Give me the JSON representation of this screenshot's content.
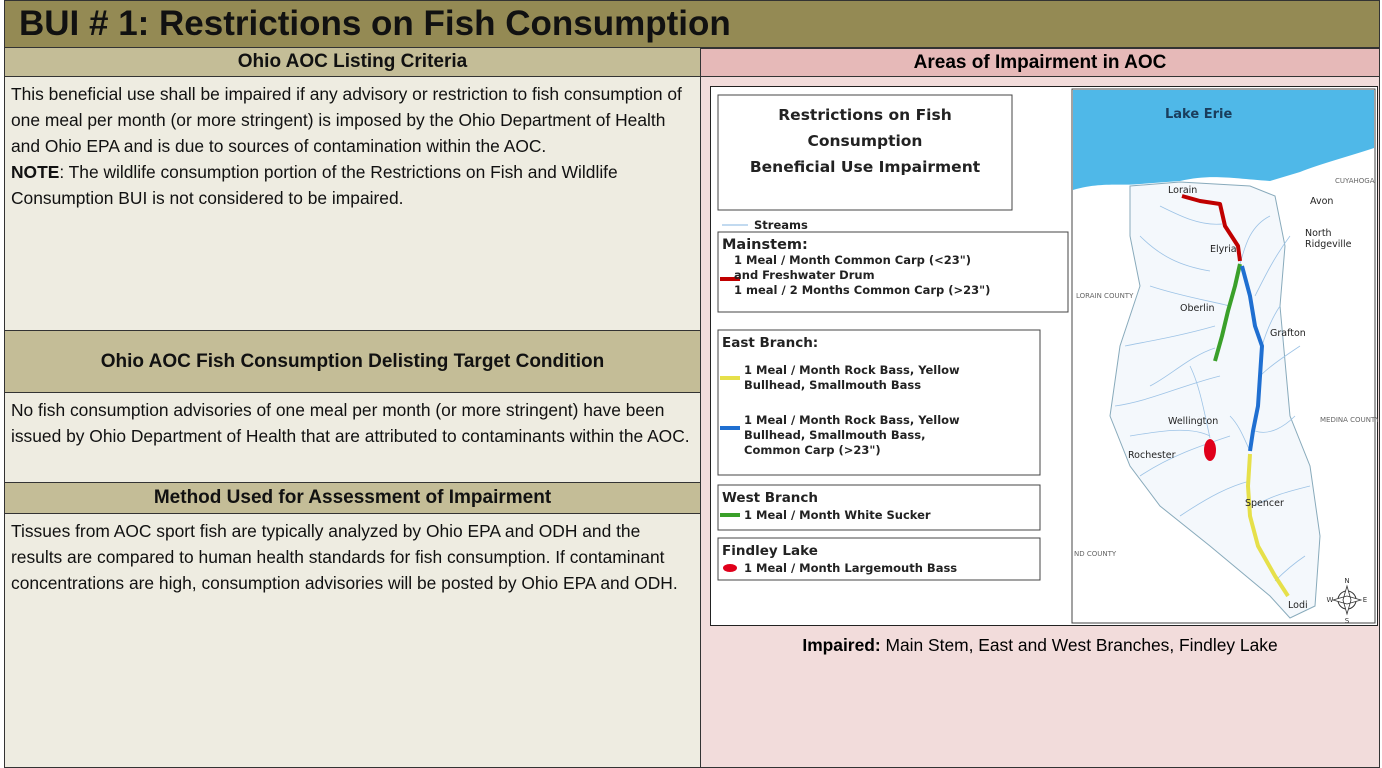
{
  "title": "BUI # 1: Restrictions on Fish Consumption",
  "left": {
    "sections": [
      {
        "heading": "Ohio AOC Listing Criteria",
        "paragraphs": [
          {
            "text": "This beneficial use shall be impaired if any advisory or restriction to fish consumption of one meal per month (or more stringent) is imposed by the Ohio Department of Health and Ohio EPA and is due to sources of contamination within the AOC."
          },
          {
            "bold": "NOTE",
            "text": ": The wildlife consumption portion of the Restrictions on Fish and Wildlife Consumption BUI is not considered to be impaired."
          }
        ]
      },
      {
        "heading": "Ohio AOC Fish Consumption Delisting Target Condition",
        "paragraphs": [
          {
            "text": "No fish consumption advisories of one meal per month (or more stringent) have been issued by Ohio Department of Health that are attributed to contaminants within the AOC."
          }
        ]
      },
      {
        "heading": "Method Used for Assessment of Impairment",
        "paragraphs": [
          {
            "text": "Tissues from AOC sport fish are typically analyzed by Ohio EPA and ODH and the results are compared to human health standards for fish consumption.  If contaminant concentrations are high, consumption advisories will be posted by Ohio EPA and ODH."
          }
        ]
      }
    ]
  },
  "right": {
    "heading": "Areas of Impairment in AOC",
    "map": {
      "legend_title": [
        "Restrictions on Fish",
        "Consumption",
        "Beneficial Use Impairment"
      ],
      "streams": {
        "label": "Streams",
        "color": "#9dc3e6"
      },
      "groups": [
        {
          "name": "Mainstem:",
          "items": [
            {
              "color": "#c00000",
              "lines": [
                "1 Meal / Month Common Carp (<23\")",
                "and Freshwater Drum",
                "1 meal / 2 Months Common Carp (>23\")"
              ]
            }
          ]
        },
        {
          "name": "East Branch:",
          "items": [
            {
              "color": "#e6e04a",
              "lines": [
                "1 Meal / Month Rock Bass, Yellow",
                "Bullhead, Smallmouth Bass"
              ]
            },
            {
              "color": "#1f6fd1",
              "lines": [
                "1 Meal / Month Rock Bass, Yellow",
                "Bullhead, Smallmouth Bass,",
                "Common Carp (>23\")"
              ]
            }
          ]
        },
        {
          "name": "West Branch",
          "items": [
            {
              "color": "#3aa02a",
              "lines": [
                "1 Meal / Month White Sucker"
              ]
            }
          ]
        },
        {
          "name": "Findley Lake",
          "items": [
            {
              "color": "#e0001b",
              "lines": [
                "1 Meal / Month Largemouth Bass"
              ]
            }
          ]
        }
      ],
      "places": [
        "Lake Erie",
        "Lorain",
        "Avon",
        "North",
        "Ridgeville",
        "Elyria",
        "Oberlin",
        "Grafton",
        "Wellington",
        "Rochester",
        "Spencer",
        "Lodi",
        "LORAIN COUNTY",
        "MEDINA COUNTY",
        "CUYAHOGA",
        "ND COUNTY",
        "N",
        "S",
        "W",
        "E"
      ]
    },
    "caption": {
      "bold": "Impaired:",
      "text": "Main Stem, East and West Branches, Findley Lake"
    }
  }
}
